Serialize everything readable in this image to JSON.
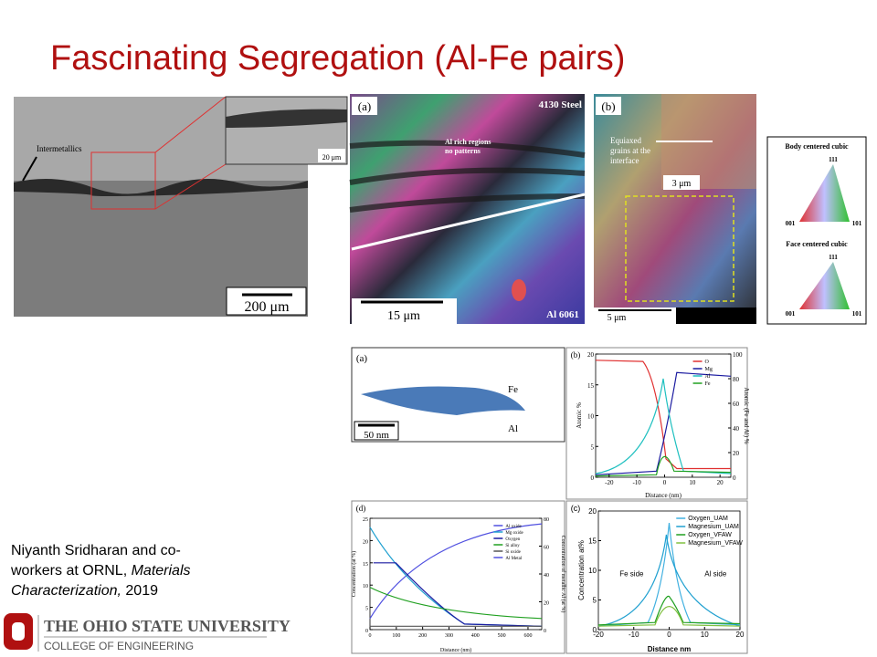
{
  "title": "Fascinating Segregation (Al-Fe pairs)",
  "sem_image": {
    "annotation": "Intermetallics",
    "inset_scale": "20 μm",
    "scale": "200 μm"
  },
  "ebsd_a": {
    "panel": "(a)",
    "top_label": "4130 Steel",
    "annotation": [
      "Al rich regions",
      "no patterns"
    ],
    "scale": "15 μm",
    "bottom_label": "Al 6061"
  },
  "ebsd_b": {
    "panel": "(b)",
    "annotation": [
      "Equiaxed",
      "grains at the",
      "interface"
    ],
    "inset_scale": "3 μm",
    "scale": "5 μm"
  },
  "ipf_legend": [
    {
      "title": "Body centered cubic",
      "corners": [
        "111",
        "001",
        "101"
      ]
    },
    {
      "title": "Face centered cubic",
      "corners": [
        "111",
        "001",
        "101"
      ]
    }
  ],
  "apt": {
    "panel": "(a)",
    "labels": [
      "Fe",
      "Al"
    ],
    "scale": "50 nm"
  },
  "plot_b": {
    "panel": "(b)",
    "y_label": "Atomic %",
    "y2_label": "Atomic (Fe and Al) %",
    "x_label": "Distance (nm)",
    "yticks": [
      0,
      5,
      10,
      15,
      20
    ],
    "y2ticks": [
      0,
      20,
      40,
      60,
      80,
      100
    ],
    "xticks": [
      -20,
      -10,
      0,
      10,
      20
    ],
    "legend": [
      "O",
      "Mg",
      "Al",
      "Fe"
    ]
  },
  "plot_d": {
    "panel": "(d)",
    "y_label": "Concentration (at %)",
    "y2_label": "Concentration of metallic Al (at %)",
    "x_label": "Distance (nm)",
    "yticks": [
      0,
      5,
      10,
      15,
      20,
      25
    ],
    "y2ticks": [
      0,
      20,
      40,
      60,
      80
    ],
    "xticks": [
      0,
      100,
      200,
      300,
      400,
      500,
      600
    ],
    "legend": [
      "Al oxide",
      "Mg oxide",
      "Oxygen",
      "Si alloy",
      "Si oxide",
      "Al Metal"
    ]
  },
  "plot_c": {
    "panel": "(c)",
    "y_label": "Concentration at%",
    "x_label": "Distance nm",
    "yticks": [
      0,
      5,
      10,
      15,
      20
    ],
    "xticks": [
      -20,
      -10,
      0,
      10,
      20
    ],
    "legend": [
      "Oxygen_UAM",
      "Magnesium_UAM",
      "Oxygen_VFAW",
      "Magnesium_VFAW"
    ],
    "annotations": [
      "Fe side",
      "Al side"
    ]
  },
  "citation": [
    [
      "Niyanth Sridharan and co-"
    ],
    [
      "workers at ORNL, ",
      "Materials"
    ],
    [
      "Characterization,",
      " 2019"
    ]
  ],
  "logo": {
    "university": "THE OHIO STATE UNIVERSITY",
    "college": "COLLEGE OF ENGINEERING"
  }
}
